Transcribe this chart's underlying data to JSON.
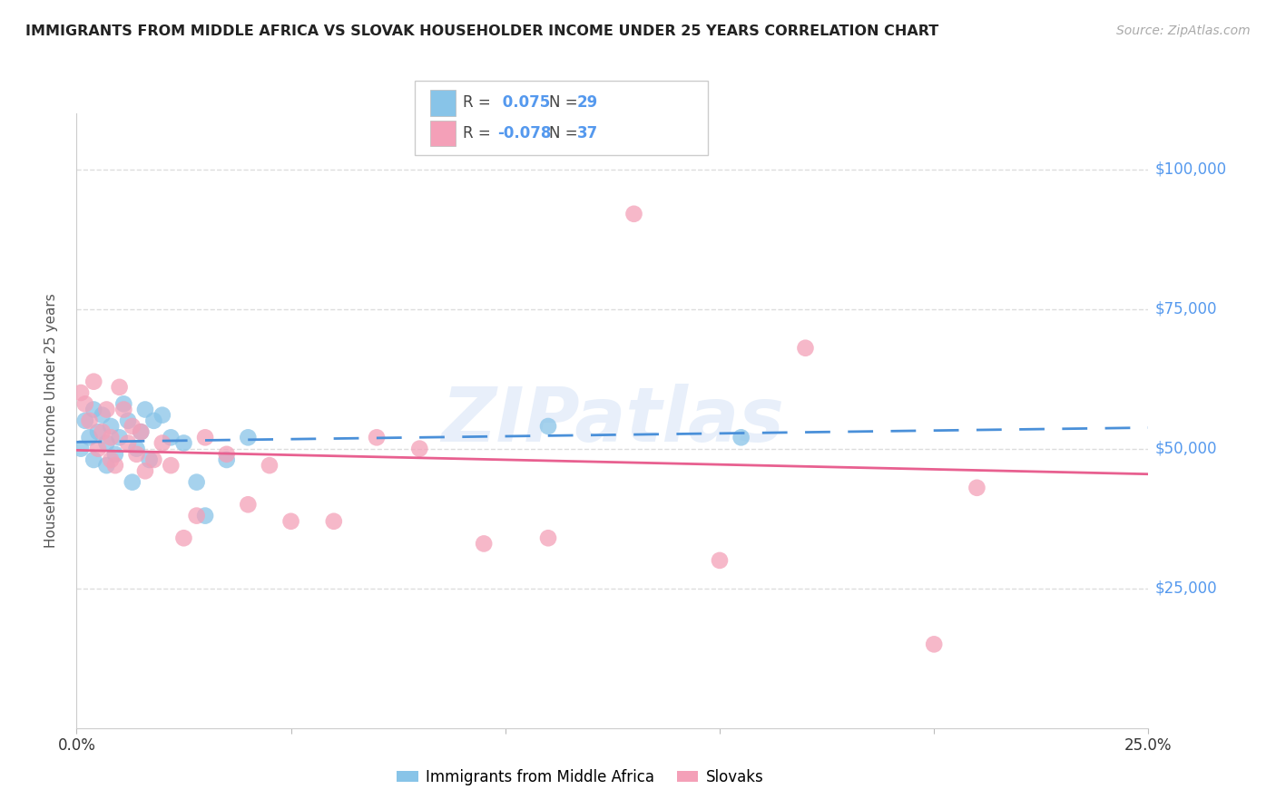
{
  "title": "IMMIGRANTS FROM MIDDLE AFRICA VS SLOVAK HOUSEHOLDER INCOME UNDER 25 YEARS CORRELATION CHART",
  "source": "Source: ZipAtlas.com",
  "ylabel": "Householder Income Under 25 years",
  "legend_label1": "Immigrants from Middle Africa",
  "legend_label2": "Slovaks",
  "r1": 0.075,
  "r2": -0.078,
  "n1": 29,
  "n2": 37,
  "color_blue": "#88c4e8",
  "color_pink": "#f4a0b8",
  "color_blue_line": "#4a90d9",
  "color_pink_line": "#e86090",
  "color_axis_labels": "#5599ee",
  "color_title": "#222222",
  "color_source": "#aaaaaa",
  "xlim": [
    0.0,
    0.25
  ],
  "ylim": [
    0,
    110000
  ],
  "yticks": [
    0,
    25000,
    50000,
    75000,
    100000
  ],
  "ytick_labels": [
    "",
    "$25,000",
    "$50,000",
    "$75,000",
    "$100,000"
  ],
  "xticks": [
    0.0,
    0.05,
    0.1,
    0.15,
    0.2,
    0.25
  ],
  "xtick_labels": [
    "0.0%",
    "",
    "",
    "",
    "",
    "25.0%"
  ],
  "blue_x": [
    0.001,
    0.002,
    0.003,
    0.004,
    0.004,
    0.005,
    0.006,
    0.007,
    0.007,
    0.008,
    0.009,
    0.01,
    0.011,
    0.012,
    0.013,
    0.014,
    0.015,
    0.016,
    0.017,
    0.018,
    0.02,
    0.022,
    0.025,
    0.028,
    0.03,
    0.035,
    0.04,
    0.11,
    0.155
  ],
  "blue_y": [
    50000,
    55000,
    52000,
    57000,
    48000,
    53000,
    56000,
    51000,
    47000,
    54000,
    49000,
    52000,
    58000,
    55000,
    44000,
    50000,
    53000,
    57000,
    48000,
    55000,
    56000,
    52000,
    51000,
    44000,
    38000,
    48000,
    52000,
    54000,
    52000
  ],
  "pink_x": [
    0.001,
    0.002,
    0.003,
    0.004,
    0.005,
    0.006,
    0.007,
    0.008,
    0.008,
    0.009,
    0.01,
    0.011,
    0.012,
    0.013,
    0.014,
    0.015,
    0.016,
    0.018,
    0.02,
    0.022,
    0.025,
    0.028,
    0.03,
    0.035,
    0.04,
    0.045,
    0.05,
    0.06,
    0.07,
    0.08,
    0.095,
    0.11,
    0.13,
    0.15,
    0.17,
    0.2,
    0.21
  ],
  "pink_y": [
    60000,
    58000,
    55000,
    62000,
    50000,
    53000,
    57000,
    48000,
    52000,
    47000,
    61000,
    57000,
    51000,
    54000,
    49000,
    53000,
    46000,
    48000,
    51000,
    47000,
    34000,
    38000,
    52000,
    49000,
    40000,
    47000,
    37000,
    37000,
    52000,
    50000,
    33000,
    34000,
    92000,
    30000,
    68000,
    15000,
    43000
  ],
  "watermark": "ZIPatlas",
  "background_color": "#ffffff",
  "grid_color": "#dddddd"
}
